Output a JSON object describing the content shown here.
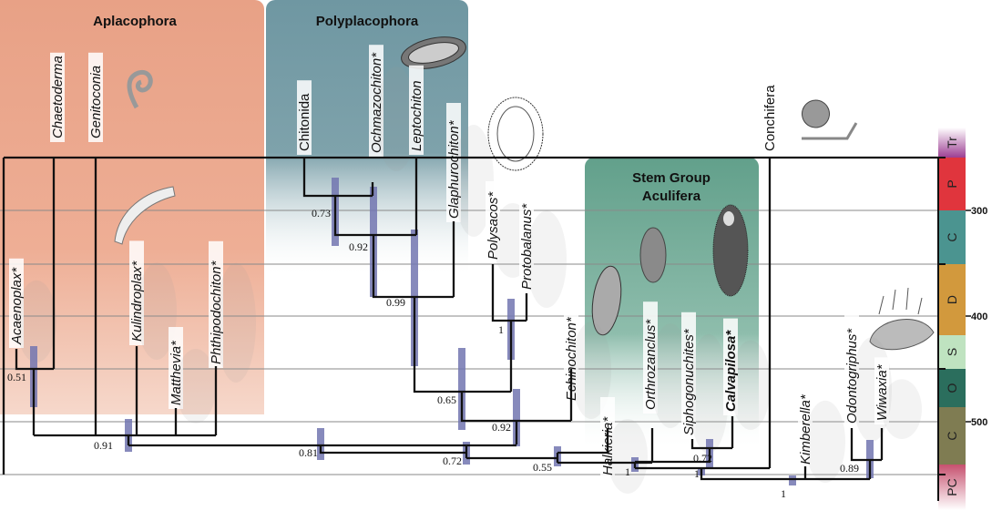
{
  "clades": [
    {
      "title": "Aplacophora",
      "color": "#e8a186"
    },
    {
      "title": "Polyplacophora",
      "color": "#6f97a2"
    },
    {
      "title_line1": "Stem Group",
      "title_line2": "Aculifera",
      "color": "#62a08b"
    }
  ],
  "taxa": [
    {
      "name": "Chaetoderma",
      "fossil": false,
      "italic": true
    },
    {
      "name": "Genitoconia",
      "fossil": false,
      "italic": true
    },
    {
      "name": "Acaenoplax*",
      "fossil": true,
      "italic": true
    },
    {
      "name": "Kulindroplax*",
      "fossil": true,
      "italic": true
    },
    {
      "name": "Matthevia*",
      "fossil": true,
      "italic": true
    },
    {
      "name": "Phthipodochiton*",
      "fossil": true,
      "italic": true
    },
    {
      "name": "Chitonida",
      "fossil": false,
      "italic": false
    },
    {
      "name": "Ochmazochiton*",
      "fossil": true,
      "italic": true
    },
    {
      "name": "Leptochiton",
      "fossil": false,
      "italic": true
    },
    {
      "name": "Glaphurochiton*",
      "fossil": true,
      "italic": true
    },
    {
      "name": "Polysacos*",
      "fossil": true,
      "italic": true
    },
    {
      "name": "Protobalanus*",
      "fossil": true,
      "italic": true
    },
    {
      "name": "Echinochiton*",
      "fossil": true,
      "italic": true
    },
    {
      "name": "Halkieria*",
      "fossil": true,
      "italic": true
    },
    {
      "name": "Orthrozanclus*",
      "fossil": true,
      "italic": true
    },
    {
      "name": "Siphogonuchites*",
      "fossil": true,
      "italic": true
    },
    {
      "name": "Calvapilosa*",
      "fossil": true,
      "italic": true,
      "bold": true
    },
    {
      "name": "Conchifera",
      "fossil": false,
      "italic": false
    },
    {
      "name": "Kimberella*",
      "fossil": true,
      "italic": true
    },
    {
      "name": "Odontogriphus*",
      "fossil": true,
      "italic": true
    },
    {
      "name": "Wiwaxia*",
      "fossil": true,
      "italic": true
    }
  ],
  "support_values": [
    "0.51",
    "0.91",
    "0.73",
    "0.92",
    "0.99",
    "0.81",
    "0.65",
    "0.92",
    "1",
    "0.72",
    "0.55",
    "1",
    "0.72",
    "1",
    "1",
    "0.89"
  ],
  "timescale": {
    "periods": [
      {
        "label": "Tr",
        "color": "#9c3f93"
      },
      {
        "label": "P",
        "color": "#e0353d"
      },
      {
        "label": "C",
        "color": "#4b9490"
      },
      {
        "label": "D",
        "color": "#d2993d"
      },
      {
        "label": "S",
        "color": "#bfe3c0"
      },
      {
        "label": "O",
        "color": "#2b6e5d"
      },
      {
        "label": "C",
        "color": "#7f7c52"
      },
      {
        "label": "PC",
        "color": "#c6516f"
      }
    ],
    "ticks": [
      "300",
      "400",
      "500"
    ]
  },
  "node_bar_color": "#7276b0"
}
